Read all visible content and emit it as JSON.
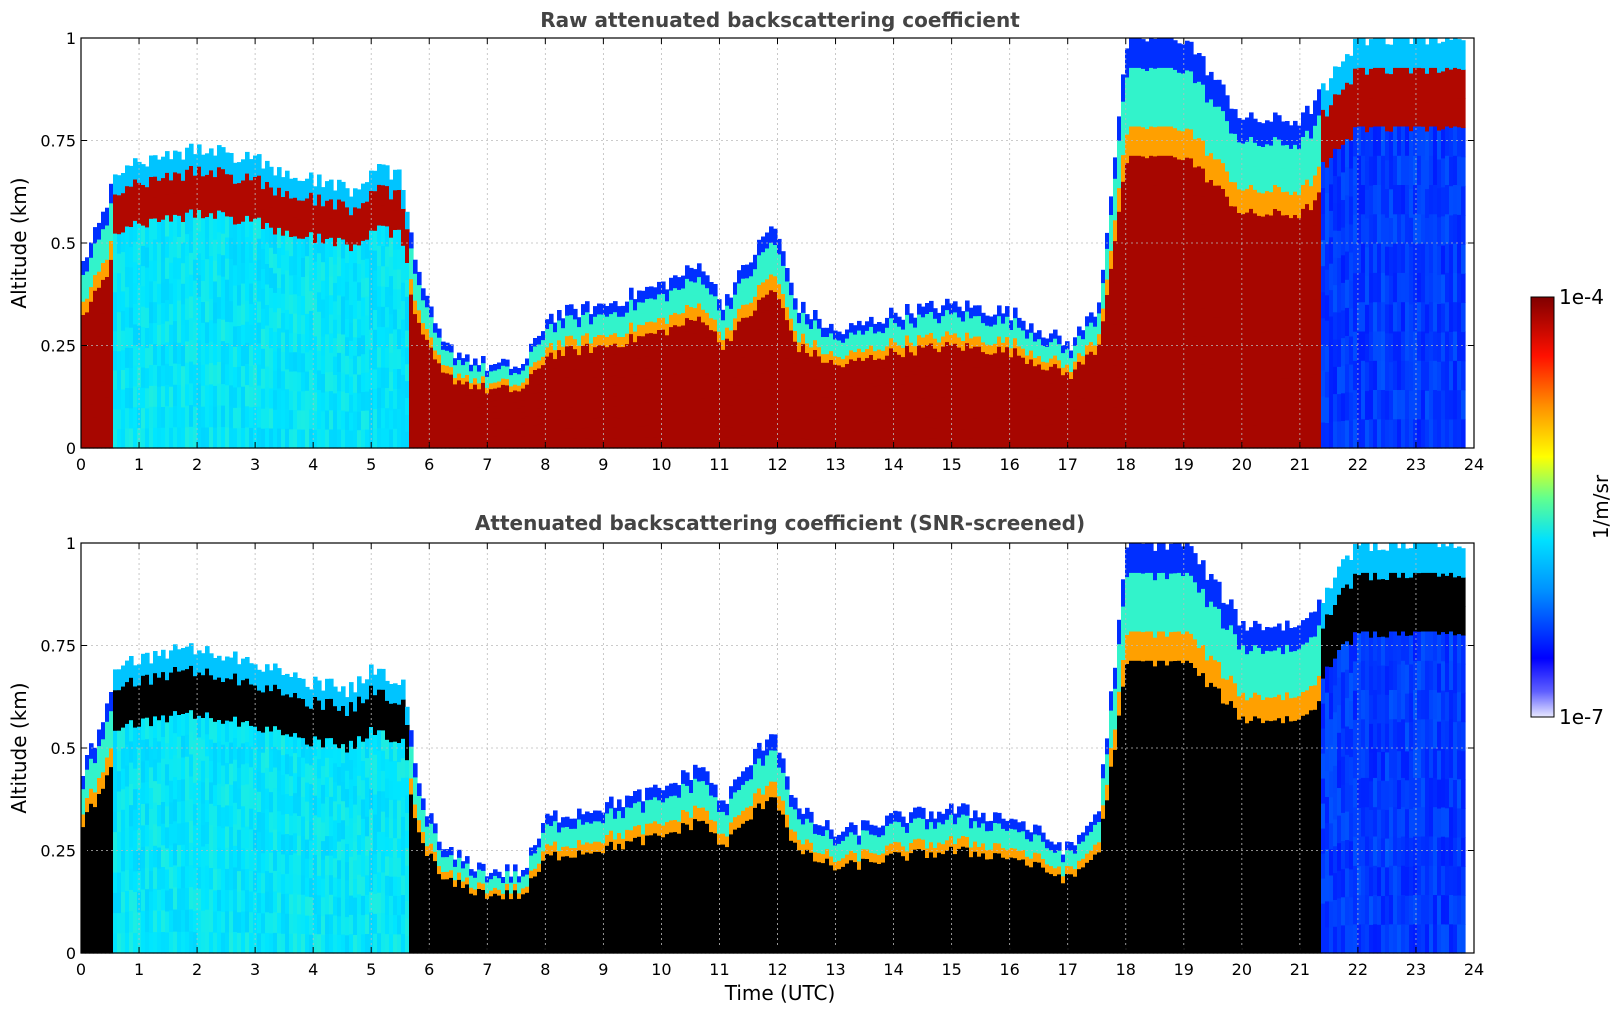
{
  "chart_data": [
    {
      "type": "heatmap",
      "title": "Raw attenuated backscattering coefficient",
      "xlabel": "",
      "ylabel": "Altitude (km)",
      "xlim": [
        0,
        24
      ],
      "ylim": [
        0,
        1
      ],
      "xticks": [
        "0",
        "1",
        "2",
        "3",
        "4",
        "5",
        "6",
        "7",
        "8",
        "9",
        "10",
        "11",
        "12",
        "13",
        "14",
        "15",
        "16",
        "17",
        "18",
        "19",
        "20",
        "21",
        "22",
        "23",
        "24"
      ],
      "yticks": [
        "0",
        "0.25",
        "0.5",
        "0.75",
        "1"
      ],
      "grid": true,
      "screened": false,
      "layer_top_km": [
        {
          "t": 0,
          "h": 0.45
        },
        {
          "t": 0.3,
          "h": 0.55
        },
        {
          "t": 0.6,
          "h": 0.68
        },
        {
          "t": 1,
          "h": 0.7
        },
        {
          "t": 2,
          "h": 0.73
        },
        {
          "t": 3,
          "h": 0.7
        },
        {
          "t": 4,
          "h": 0.65
        },
        {
          "t": 4.6,
          "h": 0.63
        },
        {
          "t": 5,
          "h": 0.68
        },
        {
          "t": 5.5,
          "h": 0.66
        },
        {
          "t": 5.8,
          "h": 0.4
        },
        {
          "t": 6.2,
          "h": 0.25
        },
        {
          "t": 7,
          "h": 0.2
        },
        {
          "t": 7.6,
          "h": 0.2
        },
        {
          "t": 8,
          "h": 0.32
        },
        {
          "t": 9,
          "h": 0.35
        },
        {
          "t": 10,
          "h": 0.4
        },
        {
          "t": 10.7,
          "h": 0.45
        },
        {
          "t": 11,
          "h": 0.35
        },
        {
          "t": 11.9,
          "h": 0.55
        },
        {
          "t": 12.3,
          "h": 0.35
        },
        {
          "t": 13,
          "h": 0.28
        },
        {
          "t": 14,
          "h": 0.33
        },
        {
          "t": 15,
          "h": 0.35
        },
        {
          "t": 16,
          "h": 0.33
        },
        {
          "t": 17,
          "h": 0.25
        },
        {
          "t": 17.5,
          "h": 0.35
        },
        {
          "t": 18,
          "h": 1.0
        },
        {
          "t": 19,
          "h": 1.0
        },
        {
          "t": 20,
          "h": 0.8
        },
        {
          "t": 21,
          "h": 0.8
        },
        {
          "t": 22,
          "h": 1.0
        },
        {
          "t": 23,
          "h": 1.0
        },
        {
          "t": 23.8,
          "h": 1.0
        }
      ]
    },
    {
      "type": "heatmap",
      "title": "Attenuated backscattering coefficient (SNR-screened)",
      "xlabel": "Time (UTC)",
      "ylabel": "Altitude (km)",
      "xlim": [
        0,
        24
      ],
      "ylim": [
        0,
        1
      ],
      "xticks": [
        "0",
        "1",
        "2",
        "3",
        "4",
        "5",
        "6",
        "7",
        "8",
        "9",
        "10",
        "11",
        "12",
        "13",
        "14",
        "15",
        "16",
        "17",
        "18",
        "19",
        "20",
        "21",
        "22",
        "23",
        "24"
      ],
      "yticks": [
        "0",
        "0.25",
        "0.5",
        "0.75",
        "1"
      ],
      "grid": true,
      "screened": true,
      "layer_top_km": [
        {
          "t": 0,
          "h": 0.45
        },
        {
          "t": 0.3,
          "h": 0.55
        },
        {
          "t": 0.6,
          "h": 0.7
        },
        {
          "t": 1,
          "h": 0.72
        },
        {
          "t": 2,
          "h": 0.75
        },
        {
          "t": 3,
          "h": 0.7
        },
        {
          "t": 4,
          "h": 0.66
        },
        {
          "t": 4.6,
          "h": 0.64
        },
        {
          "t": 5,
          "h": 0.69
        },
        {
          "t": 5.5,
          "h": 0.66
        },
        {
          "t": 5.8,
          "h": 0.4
        },
        {
          "t": 6.2,
          "h": 0.25
        },
        {
          "t": 7,
          "h": 0.2
        },
        {
          "t": 7.6,
          "h": 0.2
        },
        {
          "t": 8,
          "h": 0.33
        },
        {
          "t": 9,
          "h": 0.36
        },
        {
          "t": 10,
          "h": 0.4
        },
        {
          "t": 10.7,
          "h": 0.46
        },
        {
          "t": 11,
          "h": 0.36
        },
        {
          "t": 11.9,
          "h": 0.55
        },
        {
          "t": 12.3,
          "h": 0.35
        },
        {
          "t": 13,
          "h": 0.29
        },
        {
          "t": 14,
          "h": 0.33
        },
        {
          "t": 15,
          "h": 0.35
        },
        {
          "t": 16,
          "h": 0.33
        },
        {
          "t": 17,
          "h": 0.25
        },
        {
          "t": 17.5,
          "h": 0.35
        },
        {
          "t": 18,
          "h": 1.0
        },
        {
          "t": 19,
          "h": 1.0
        },
        {
          "t": 20,
          "h": 0.8
        },
        {
          "t": 21,
          "h": 0.8
        },
        {
          "t": 22,
          "h": 1.0
        },
        {
          "t": 23,
          "h": 1.0
        },
        {
          "t": 23.8,
          "h": 1.0
        }
      ]
    }
  ],
  "colorbar": {
    "label": "1/m/sr",
    "max_label": "1e-4",
    "min_label": "1e-7",
    "colormap": [
      "#e8e8ff",
      "#0000ff",
      "#00a0ff",
      "#00ffff",
      "#80ff80",
      "#ffff00",
      "#ff8000",
      "#ff0000",
      "#800000"
    ]
  }
}
